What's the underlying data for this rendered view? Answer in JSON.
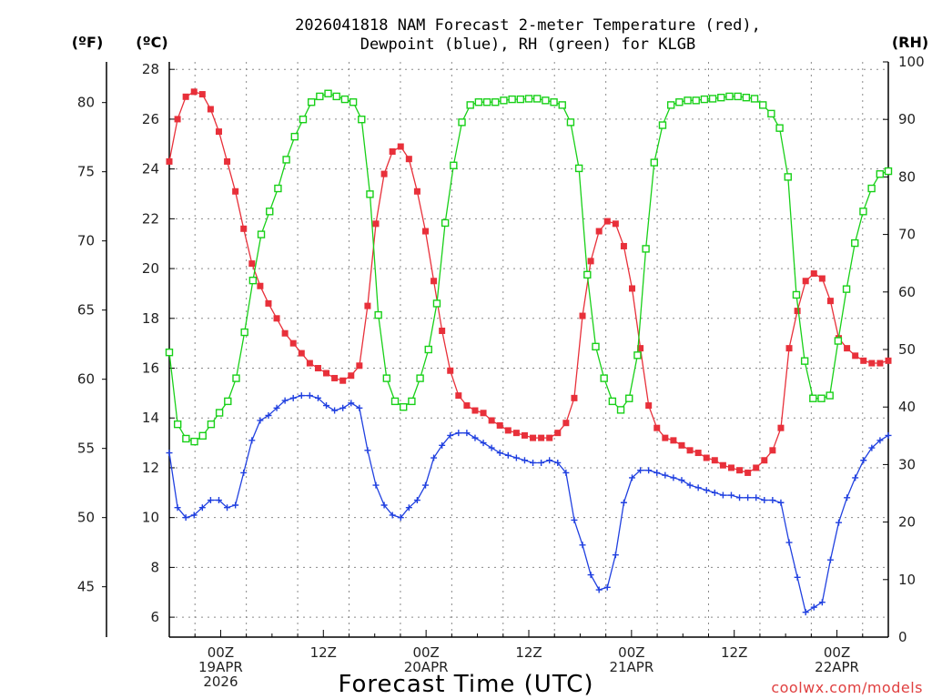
{
  "chart_data": {
    "type": "line",
    "title_lines": [
      "2026041818 NAM Forecast 2-meter Temperature (red),",
      "Dewpoint (blue), RH (green) for KLGB"
    ],
    "xlabel": "Forecast Time (UTC)",
    "unit_labels": {
      "fahrenheit": "(ºF)",
      "celsius": "(ºC)",
      "rh": "(RH)"
    },
    "credit": "coolwx.com/models",
    "x_start_hour": 18,
    "x_end_hour": 102,
    "x_ticks": [
      {
        "hour": 24,
        "lines": [
          "00Z",
          "19APR",
          "2026"
        ]
      },
      {
        "hour": 36,
        "lines": [
          "12Z"
        ]
      },
      {
        "hour": 48,
        "lines": [
          "00Z",
          "20APR"
        ]
      },
      {
        "hour": 60,
        "lines": [
          "12Z"
        ]
      },
      {
        "hour": 72,
        "lines": [
          "00Z",
          "21APR"
        ]
      },
      {
        "hour": 84,
        "lines": [
          "12Z"
        ]
      },
      {
        "hour": 96,
        "lines": [
          "00Z",
          "22APR"
        ]
      }
    ],
    "celsius_axis": {
      "min": 5.2,
      "max": 28.3,
      "ticks": [
        6,
        8,
        10,
        12,
        14,
        16,
        18,
        20,
        22,
        24,
        26,
        28
      ]
    },
    "fahrenheit_ticks": [
      45,
      50,
      55,
      60,
      65,
      70,
      75,
      80
    ],
    "rh_axis": {
      "min": 0,
      "max": 100,
      "ticks": [
        0,
        10,
        20,
        30,
        40,
        50,
        60,
        70,
        80,
        90,
        100
      ]
    },
    "grid": true,
    "series": [
      {
        "key": "temperature",
        "color": "#e8303a",
        "marker": "filled-square",
        "axis": "celsius",
        "values": [
          24.3,
          26.0,
          26.9,
          27.1,
          27.0,
          26.4,
          25.5,
          24.3,
          23.1,
          21.6,
          20.2,
          19.3,
          18.6,
          18.0,
          17.4,
          17.0,
          16.6,
          16.2,
          16.0,
          15.8,
          15.6,
          15.5,
          15.7,
          16.1,
          18.5,
          21.8,
          23.8,
          24.7,
          24.9,
          24.4,
          23.1,
          21.5,
          19.5,
          17.5,
          15.9,
          14.9,
          14.5,
          14.3,
          14.2,
          13.9,
          13.7,
          13.5,
          13.4,
          13.3,
          13.2,
          13.2,
          13.2,
          13.4,
          13.8,
          14.8,
          18.1,
          20.3,
          21.5,
          21.9,
          21.8,
          20.9,
          19.2,
          16.8,
          14.5,
          13.6,
          13.2,
          13.1,
          12.9,
          12.7,
          12.6,
          12.4,
          12.3,
          12.1,
          12.0,
          11.9,
          11.8,
          12.0,
          12.3,
          12.7,
          13.6,
          16.8,
          18.3,
          19.5,
          19.8,
          19.6,
          18.7,
          17.2,
          16.8,
          16.5,
          16.3,
          16.2,
          16.2,
          16.3
        ]
      },
      {
        "key": "dewpoint",
        "color": "#2040e0",
        "marker": "plus",
        "axis": "celsius",
        "values": [
          12.6,
          10.4,
          10.0,
          10.1,
          10.4,
          10.7,
          10.7,
          10.4,
          10.5,
          11.8,
          13.1,
          13.9,
          14.1,
          14.4,
          14.7,
          14.8,
          14.9,
          14.9,
          14.8,
          14.5,
          14.3,
          14.4,
          14.6,
          14.4,
          12.7,
          11.3,
          10.5,
          10.1,
          10.0,
          10.4,
          10.7,
          11.3,
          12.4,
          12.9,
          13.3,
          13.4,
          13.4,
          13.2,
          13.0,
          12.8,
          12.6,
          12.5,
          12.4,
          12.3,
          12.2,
          12.2,
          12.3,
          12.2,
          11.8,
          9.9,
          8.9,
          7.7,
          7.1,
          7.2,
          8.5,
          10.6,
          11.6,
          11.9,
          11.9,
          11.8,
          11.7,
          11.6,
          11.5,
          11.3,
          11.2,
          11.1,
          11.0,
          10.9,
          10.9,
          10.8,
          10.8,
          10.8,
          10.7,
          10.7,
          10.6,
          9.0,
          7.6,
          6.2,
          6.4,
          6.6,
          8.3,
          9.8,
          10.8,
          11.6,
          12.3,
          12.8,
          13.1,
          13.3
        ]
      },
      {
        "key": "rh",
        "color": "#18d018",
        "marker": "open-square",
        "axis": "rh",
        "values": [
          49.5,
          37,
          34.5,
          34,
          35,
          37,
          39,
          41,
          45,
          53,
          62,
          70,
          74,
          78,
          83,
          87,
          90,
          93,
          94,
          94.5,
          94,
          93.5,
          93,
          90,
          77,
          56,
          45,
          41,
          40,
          41,
          45,
          50,
          58,
          72,
          82,
          89.5,
          92.5,
          93,
          93,
          93,
          93.3,
          93.5,
          93.5,
          93.6,
          93.6,
          93.3,
          93,
          92.5,
          89.5,
          81.5,
          63,
          50.5,
          45,
          41,
          39.5,
          41.5,
          49,
          67.5,
          82.5,
          89,
          92.5,
          93,
          93.3,
          93.3,
          93.5,
          93.6,
          93.8,
          94,
          94,
          93.8,
          93.6,
          92.5,
          91,
          88.5,
          80,
          59.5,
          48,
          41.5,
          41.5,
          42,
          51.5,
          60.5,
          68.5,
          74,
          78,
          80.5,
          81
        ]
      }
    ]
  }
}
